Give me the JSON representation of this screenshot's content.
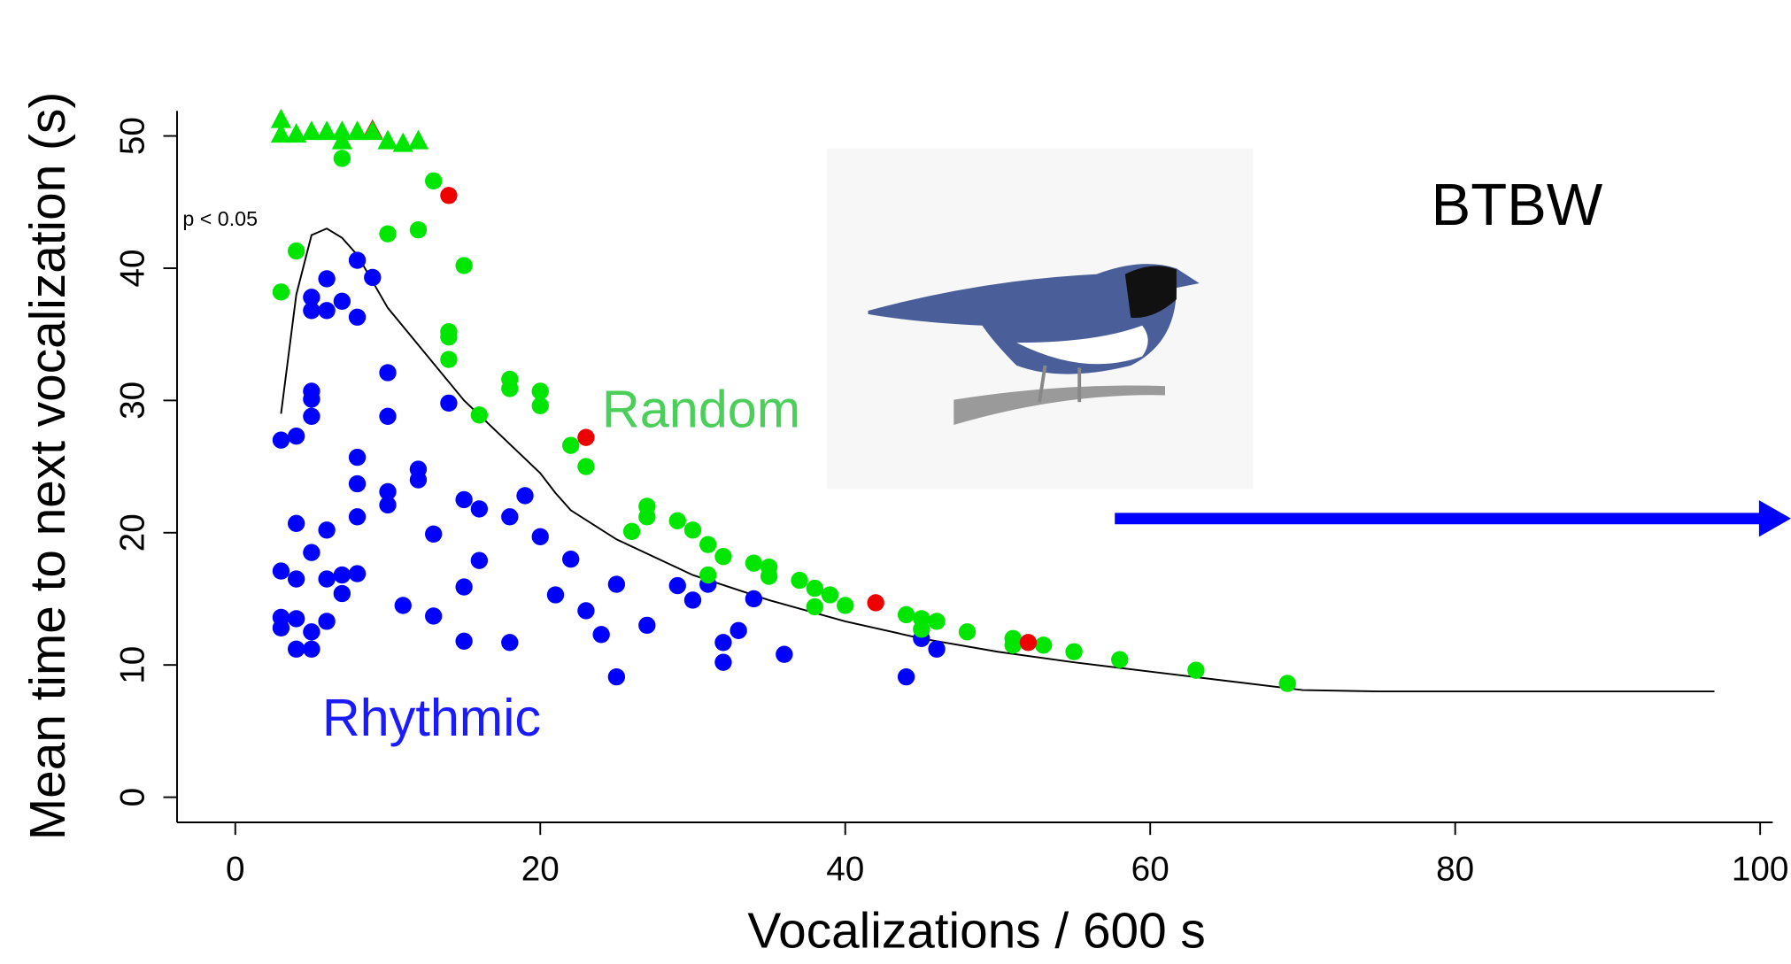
{
  "chart_data": {
    "type": "scatter",
    "title": "BTBW",
    "annotation": "p < 0.05",
    "x_label": "Vocalizations / 600 s",
    "y_label": "Mean time to next vocalization (s)",
    "xlim": [
      0,
      100
    ],
    "ylim": [
      0,
      50
    ],
    "xticks": [
      0,
      20,
      40,
      60,
      80,
      100
    ],
    "yticks": [
      0,
      10,
      20,
      30,
      40,
      50
    ],
    "series": [
      {
        "name": "Rhythmic",
        "color": "#0000ff",
        "marker": "circle",
        "x": [
          3,
          3,
          3,
          3,
          4,
          4,
          4,
          4,
          4,
          5,
          5,
          5,
          5,
          5,
          5,
          5,
          5,
          6,
          6,
          6,
          6,
          6,
          7,
          7,
          7,
          8,
          8,
          8,
          8,
          8,
          8,
          9,
          10,
          10,
          10,
          10,
          11,
          12,
          12,
          13,
          13,
          14,
          15,
          15,
          15,
          16,
          16,
          18,
          18,
          19,
          20,
          21,
          22,
          23,
          24,
          25,
          25,
          27,
          29,
          30,
          31,
          32,
          32,
          33,
          34,
          36,
          44,
          45,
          46
        ],
        "values": [
          27.0,
          17.1,
          13.6,
          12.8,
          27.3,
          20.7,
          16.5,
          13.5,
          11.2,
          37.8,
          36.8,
          30.7,
          30.1,
          28.8,
          18.5,
          12.5,
          11.2,
          39.2,
          36.8,
          20.2,
          16.5,
          13.3,
          37.5,
          16.8,
          15.4,
          40.6,
          36.3,
          25.7,
          23.7,
          21.2,
          16.9,
          39.3,
          32.1,
          28.8,
          23.1,
          22.1,
          14.5,
          24.8,
          24.0,
          19.9,
          13.7,
          29.8,
          22.5,
          15.9,
          11.8,
          21.8,
          17.9,
          21.2,
          11.7,
          22.8,
          19.7,
          15.3,
          18.0,
          14.1,
          12.3,
          16.1,
          9.1,
          13.0,
          16.0,
          14.9,
          16.1,
          11.7,
          10.2,
          12.6,
          15.0,
          10.8,
          9.1,
          12.0,
          11.2
        ]
      },
      {
        "name": "Random",
        "color": "#00e600",
        "marker": "circle",
        "x": [
          3,
          4,
          7,
          10,
          12,
          13,
          15,
          14,
          14,
          14,
          16,
          18,
          18,
          20,
          20,
          22,
          23,
          26,
          27,
          27,
          29,
          30,
          31,
          32,
          31,
          34,
          35,
          35,
          37,
          38,
          38,
          39,
          40,
          44,
          45,
          45,
          46,
          48,
          51,
          51,
          53,
          55,
          58,
          63,
          69
        ],
        "values": [
          38.2,
          41.3,
          48.3,
          42.6,
          42.9,
          46.6,
          40.2,
          35.2,
          34.8,
          33.1,
          28.9,
          31.6,
          30.9,
          30.7,
          29.6,
          26.6,
          25.0,
          20.1,
          22.0,
          21.2,
          20.9,
          20.2,
          19.1,
          18.2,
          16.8,
          17.7,
          17.4,
          16.7,
          16.4,
          15.8,
          14.4,
          15.3,
          14.5,
          13.8,
          13.5,
          12.7,
          13.3,
          12.5,
          12.0,
          11.5,
          11.5,
          11.0,
          10.4,
          9.6,
          8.6
        ]
      },
      {
        "color": "#ee0000",
        "marker": "circle",
        "x": [
          14,
          23,
          42,
          52
        ],
        "values": [
          45.5,
          27.2,
          14.7,
          11.7
        ]
      },
      {
        "color": "#ee0000",
        "marker": "triangle",
        "x": [
          9
        ],
        "values": [
          50.4
        ]
      },
      {
        "color": "#00e600",
        "marker": "triangle",
        "x": [
          3,
          3,
          4,
          5,
          6,
          7,
          8,
          9,
          10,
          11,
          12,
          7
        ],
        "values": [
          51.2,
          50.1,
          50.1,
          50.3,
          50.3,
          50.3,
          50.3,
          50.3,
          49.6,
          49.4,
          49.6,
          49.6
        ]
      }
    ],
    "curve": {
      "color": "#000000",
      "x": [
        3,
        4,
        5,
        6,
        7,
        8,
        10,
        15,
        20,
        21,
        22,
        25,
        30,
        35,
        40,
        45,
        50,
        55,
        60,
        65,
        70,
        75,
        97
      ],
      "values": [
        29,
        38,
        42.5,
        43,
        42.3,
        41,
        37,
        30,
        24.5,
        23,
        21.7,
        19.5,
        16.8,
        14.9,
        13.3,
        12,
        11,
        10.2,
        9.5,
        8.8,
        8.1,
        8,
        8
      ]
    }
  }
}
